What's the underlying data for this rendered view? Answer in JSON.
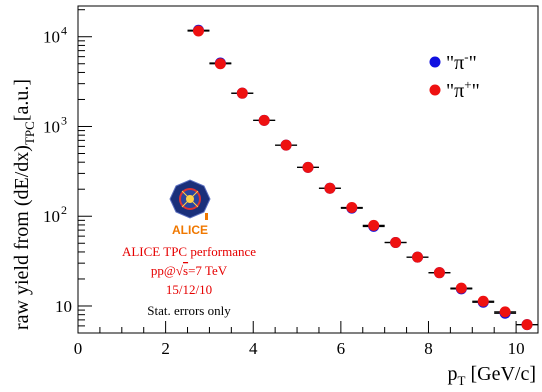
{
  "chart_data": {
    "type": "scatter",
    "xlabel_main": "p",
    "xlabel_sub": "T",
    "xlabel_unit": " [GeV/c]",
    "ylabel_main": "raw yield from (dE/dx)",
    "ylabel_sub": "TPC",
    "ylabel_unit": "[a.u.]",
    "xlim": [
      0,
      10.5
    ],
    "ylim": [
      5,
      22000
    ],
    "yscale": "log",
    "grid": false,
    "legend_position": "top-right",
    "x_ticks": [
      {
        "value": 0,
        "label": "0"
      },
      {
        "value": 2,
        "label": "2"
      },
      {
        "value": 4,
        "label": "4"
      },
      {
        "value": 6,
        "label": "6"
      },
      {
        "value": 8,
        "label": "8"
      },
      {
        "value": 10,
        "label": "10"
      }
    ],
    "y_ticks": [
      {
        "value": 10,
        "label": "10",
        "exp": ""
      },
      {
        "value": 100,
        "label": "10",
        "exp": "2"
      },
      {
        "value": 1000,
        "label": "10",
        "exp": "3"
      },
      {
        "value": 10000,
        "label": "10",
        "exp": "4"
      }
    ],
    "x": [
      2.75,
      3.25,
      3.75,
      4.25,
      4.75,
      5.25,
      5.75,
      6.25,
      6.75,
      7.25,
      7.75,
      8.25,
      8.75,
      9.25,
      9.75,
      10.25
    ],
    "x_error": 0.25,
    "series": [
      {
        "name": "\"π⁻\"",
        "color": "#1010e0",
        "values": [
          11800,
          5100,
          2350,
          1170,
          620,
          350,
          205,
          123,
          77,
          51,
          35,
          23.5,
          15.5,
          11,
          8.3,
          6.2
        ]
      },
      {
        "name": "\"π⁺\"",
        "color": "#ee1111",
        "values": [
          11600,
          5000,
          2350,
          1170,
          620,
          350,
          205,
          125,
          79,
          51,
          35,
          23.5,
          15.8,
          11.3,
          8.6,
          6.2
        ]
      }
    ],
    "legend": [
      {
        "prefix": "\"π",
        "sup": "-",
        "suffix": "\"",
        "color": "#1010e0"
      },
      {
        "prefix": "\"π",
        "sup": "+",
        "suffix": "\"",
        "color": "#ee1111"
      }
    ],
    "annotations": {
      "logo_text": "ALICE",
      "line1": "ALICE TPC performance",
      "line2_a": "pp@",
      "line2_b": "s",
      "line2_c": "=7 TeV",
      "line3": "15/12/10",
      "line4": "Stat. errors only"
    }
  }
}
